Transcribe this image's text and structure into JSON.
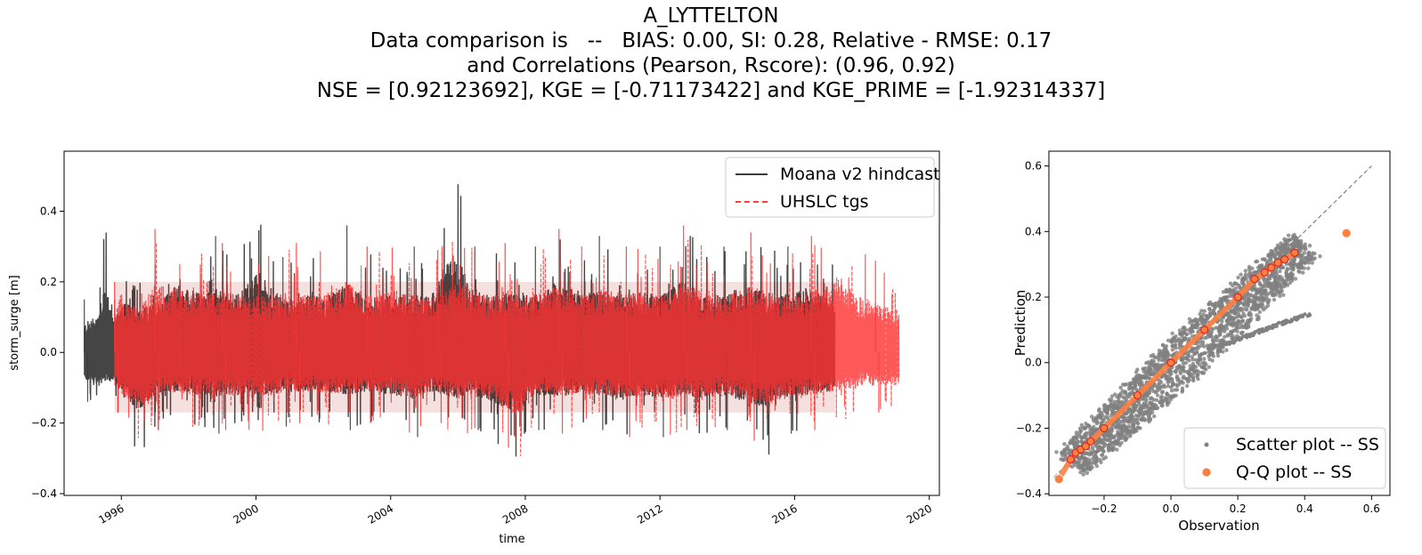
{
  "title_lines": [
    "A_LYTTELTON",
    "Data comparison is   --   BIAS: 0.00, SI: 0.28, Relative - RMSE: 0.17",
    "and Correlations (Pearson, Rscore): (0.96, 0.92)",
    "NSE = [0.92123692], KGE = [-0.71173422] and KGE_PRIME = [-1.92314337]"
  ],
  "chart_data": [
    {
      "type": "line",
      "xlabel": "time",
      "ylabel": "storm_surge [m]",
      "xlim": [
        1994.3,
        2020.3
      ],
      "ylim": [
        -0.405,
        0.57
      ],
      "xticks": [
        1996,
        2000,
        2004,
        2008,
        2012,
        2016,
        2020
      ],
      "xtick_labels": [
        "1996",
        "2000",
        "2004",
        "2008",
        "2012",
        "2016",
        "2020"
      ],
      "yticks": [
        -0.4,
        -0.2,
        0.0,
        0.2,
        0.4
      ],
      "ytick_labels": [
        "−0.4",
        "−0.2",
        "0.0",
        "0.2",
        "0.4"
      ],
      "legend": "top-right",
      "series": [
        {
          "name": "Moana v2 hindcast",
          "color": "#3b3b3b",
          "style": "solid",
          "x_range": [
            1994.9,
            2017.2
          ],
          "envelope_points": [
            [
              1994.9,
              0.15,
              -0.14
            ],
            [
              1995.3,
              0.2,
              -0.18
            ],
            [
              1995.5,
              0.38,
              -0.15
            ],
            [
              1995.8,
              0.15,
              -0.17
            ],
            [
              1996.0,
              0.27,
              -0.2
            ],
            [
              1996.5,
              0.22,
              -0.31
            ],
            [
              1997.0,
              0.25,
              -0.22
            ],
            [
              1997.7,
              0.35,
              -0.2
            ],
            [
              1998.3,
              0.31,
              -0.22
            ],
            [
              1998.8,
              0.33,
              -0.23
            ],
            [
              1999.4,
              0.3,
              -0.2
            ],
            [
              2000.1,
              0.42,
              -0.22
            ],
            [
              2000.8,
              0.27,
              -0.21
            ],
            [
              2001.5,
              0.3,
              -0.2
            ],
            [
              2002.1,
              0.29,
              -0.2
            ],
            [
              2002.7,
              0.36,
              -0.22
            ],
            [
              2003.3,
              0.28,
              -0.2
            ],
            [
              2004.0,
              0.3,
              -0.22
            ],
            [
              2004.7,
              0.3,
              -0.24
            ],
            [
              2005.2,
              0.29,
              -0.2
            ],
            [
              2005.9,
              0.53,
              -0.24
            ],
            [
              2006.5,
              0.3,
              -0.22
            ],
            [
              2007.1,
              0.31,
              -0.26
            ],
            [
              2007.7,
              0.3,
              -0.33
            ],
            [
              2008.3,
              0.3,
              -0.22
            ],
            [
              2009.0,
              0.36,
              -0.23
            ],
            [
              2009.6,
              0.3,
              -0.21
            ],
            [
              2010.2,
              0.33,
              -0.22
            ],
            [
              2010.8,
              0.3,
              -0.24
            ],
            [
              2011.4,
              0.31,
              -0.22
            ],
            [
              2012.0,
              0.3,
              -0.24
            ],
            [
              2012.7,
              0.37,
              -0.22
            ],
            [
              2013.3,
              0.3,
              -0.24
            ],
            [
              2013.9,
              0.3,
              -0.22
            ],
            [
              2014.6,
              0.35,
              -0.26
            ],
            [
              2015.2,
              0.31,
              -0.3
            ],
            [
              2015.8,
              0.3,
              -0.23
            ],
            [
              2016.4,
              0.33,
              -0.22
            ],
            [
              2017.2,
              0.27,
              -0.2
            ]
          ]
        },
        {
          "name": "UHSLC tgs",
          "color": "#ff3b3b",
          "style": "dashed",
          "x_range": [
            1995.8,
            2019.1
          ],
          "envelope_points": [
            [
              1995.8,
              0.2,
              -0.17
            ],
            [
              1996.0,
              0.3,
              -0.22
            ],
            [
              1996.5,
              0.22,
              -0.29
            ],
            [
              1997.0,
              0.35,
              -0.22
            ],
            [
              1997.7,
              0.33,
              -0.21
            ],
            [
              1998.3,
              0.3,
              -0.22
            ],
            [
              1999.0,
              0.31,
              -0.22
            ],
            [
              1999.8,
              0.29,
              -0.23
            ],
            [
              2000.5,
              0.3,
              -0.22
            ],
            [
              2001.2,
              0.31,
              -0.2
            ],
            [
              2002.0,
              0.29,
              -0.21
            ],
            [
              2002.6,
              0.37,
              -0.22
            ],
            [
              2003.3,
              0.3,
              -0.2
            ],
            [
              2004.0,
              0.31,
              -0.22
            ],
            [
              2004.7,
              0.3,
              -0.23
            ],
            [
              2005.4,
              0.29,
              -0.2
            ],
            [
              2006.0,
              0.36,
              -0.24
            ],
            [
              2006.7,
              0.3,
              -0.23
            ],
            [
              2007.4,
              0.31,
              -0.27
            ],
            [
              2007.7,
              0.3,
              -0.35
            ],
            [
              2008.3,
              0.3,
              -0.22
            ],
            [
              2009.0,
              0.35,
              -0.23
            ],
            [
              2009.7,
              0.3,
              -0.21
            ],
            [
              2010.3,
              0.33,
              -0.22
            ],
            [
              2011.0,
              0.3,
              -0.24
            ],
            [
              2011.7,
              0.31,
              -0.22
            ],
            [
              2012.3,
              0.3,
              -0.24
            ],
            [
              2012.7,
              0.36,
              -0.22
            ],
            [
              2013.4,
              0.3,
              -0.24
            ],
            [
              2014.0,
              0.3,
              -0.22
            ],
            [
              2014.7,
              0.34,
              -0.25
            ],
            [
              2015.2,
              0.31,
              -0.27
            ],
            [
              2015.9,
              0.3,
              -0.23
            ],
            [
              2016.5,
              0.33,
              -0.22
            ],
            [
              2017.3,
              0.4,
              -0.2
            ],
            [
              2017.8,
              0.3,
              -0.18
            ],
            [
              2018.4,
              0.26,
              -0.17
            ],
            [
              2019.1,
              0.22,
              -0.17
            ]
          ]
        }
      ]
    },
    {
      "type": "scatter",
      "xlabel": "Observation",
      "ylabel": "Prediction",
      "xlim": [
        -0.365,
        0.655
      ],
      "ylim": [
        -0.405,
        0.645
      ],
      "xticks": [
        -0.2,
        0.0,
        0.2,
        0.4,
        0.6
      ],
      "xtick_labels": [
        "−0.2",
        "0.0",
        "0.2",
        "0.4",
        "0.6"
      ],
      "yticks": [
        -0.4,
        -0.2,
        0.0,
        0.2,
        0.4,
        0.6
      ],
      "ytick_labels": [
        "−0.4",
        "−0.2",
        "0.0",
        "0.2",
        "0.4",
        "0.6"
      ],
      "legend": "bottom-right",
      "reference_line": [
        [
          -0.35,
          -0.35
        ],
        [
          0.6,
          0.6
        ]
      ],
      "series": [
        {
          "name": "Scatter plot -- SS",
          "color": "#808080",
          "cloud_center_line": [
            [
              -0.3,
              -0.31
            ],
            [
              0.4,
              0.36
            ]
          ],
          "cloud_spread": 0.065,
          "branch_points": [
            [
              0.15,
              0.05
            ],
            [
              0.25,
              0.09
            ],
            [
              0.33,
              0.12
            ],
            [
              0.42,
              0.15
            ]
          ]
        },
        {
          "name": "Q-Q plot -- SS",
          "color": "#ff7f3f",
          "edge_color": "#d62728",
          "points": [
            [
              -0.335,
              -0.355
            ],
            [
              -0.3,
              -0.295
            ],
            [
              -0.285,
              -0.275
            ],
            [
              -0.27,
              -0.265
            ],
            [
              -0.255,
              -0.255
            ],
            [
              -0.24,
              -0.24
            ],
            [
              -0.2,
              -0.2
            ],
            [
              -0.1,
              -0.1
            ],
            [
              0.0,
              0.0
            ],
            [
              0.1,
              0.1
            ],
            [
              0.2,
              0.2
            ],
            [
              0.25,
              0.255
            ],
            [
              0.28,
              0.275
            ],
            [
              0.3,
              0.29
            ],
            [
              0.32,
              0.305
            ],
            [
              0.34,
              0.315
            ],
            [
              0.37,
              0.335
            ],
            [
              0.525,
              0.395
            ]
          ]
        }
      ]
    }
  ]
}
